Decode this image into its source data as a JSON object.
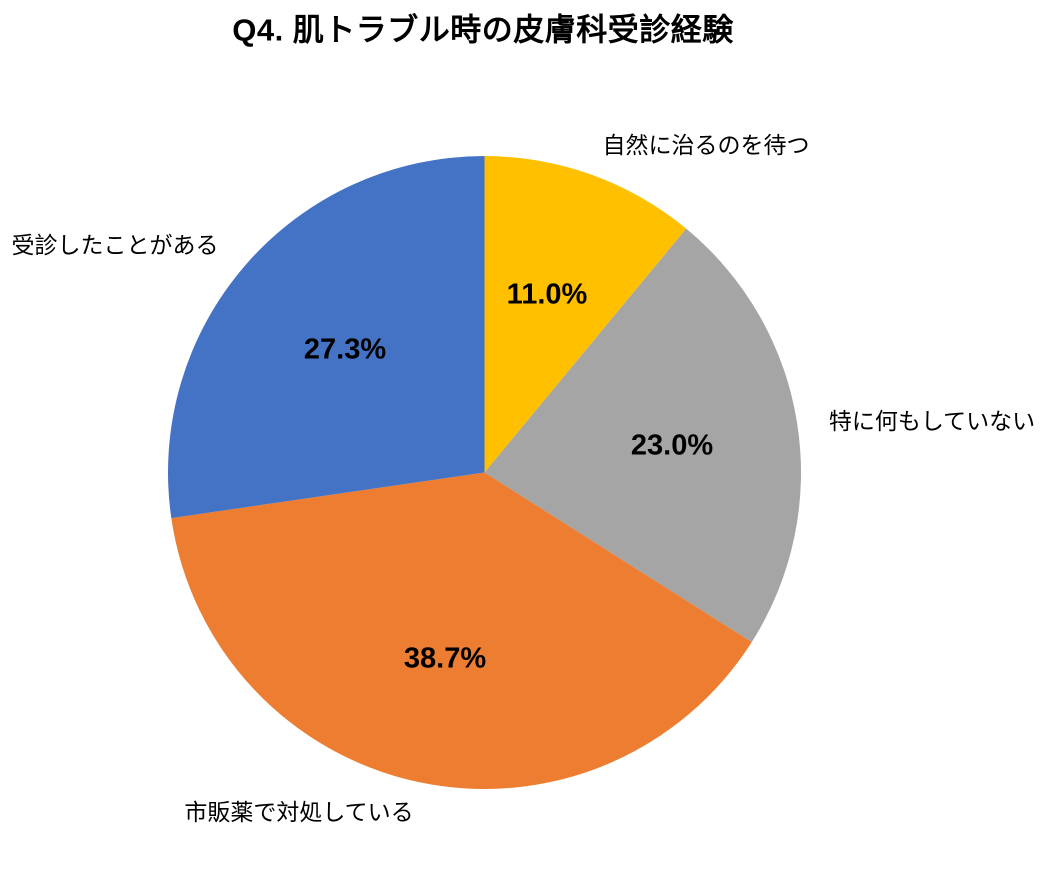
{
  "title": "Q4. 肌トラブル時の皮膚科受診経験",
  "chart_data": {
    "type": "pie",
    "title": "Q4. 肌トラブル時の皮膚科受診経験",
    "start_angle": "top (12 o'clock)",
    "direction": "clockwise",
    "legend_position": "none (direct labels around pie)",
    "slices": [
      {
        "label": "自然に治るのを待つ",
        "value": 11.0,
        "pct_label": "11.0%",
        "color": "#FFC000"
      },
      {
        "label": "特に何もしていない",
        "value": 23.0,
        "pct_label": "23.0%",
        "color": "#A5A5A5"
      },
      {
        "label": "市販薬で対処している",
        "value": 38.7,
        "pct_label": "38.7%",
        "color": "#ED7D31"
      },
      {
        "label": "受診したことがある",
        "value": 27.3,
        "pct_label": "27.3%",
        "color": "#4472C4"
      }
    ]
  },
  "layout_hints": {
    "background": "#ffffff",
    "text_color": "#000000"
  }
}
